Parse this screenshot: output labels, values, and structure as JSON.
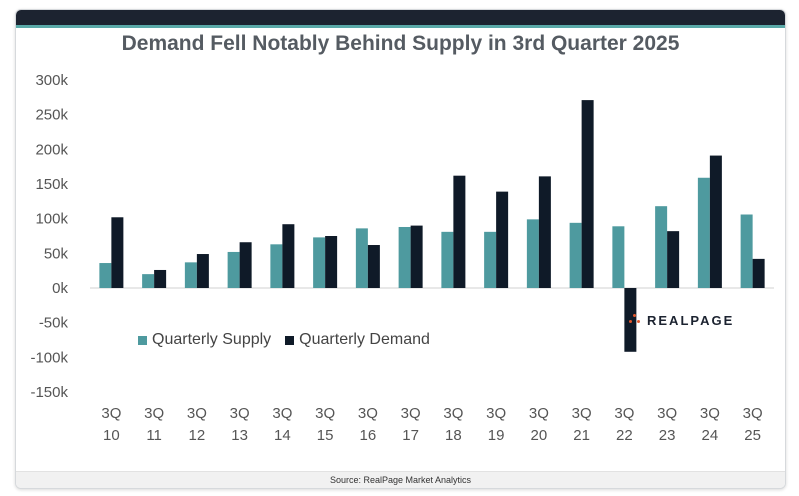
{
  "title": "Demand Fell Notably Behind Supply in 3rd Quarter 2025",
  "footer": "Source: RealPage Market Analytics",
  "logo_text": "REALPAGE",
  "colors": {
    "supply": "#4e9a9f",
    "demand": "#0f1a28",
    "logo_accent": "#e2572c"
  },
  "chart_data": {
    "type": "bar",
    "categories": [
      [
        "3Q",
        "10"
      ],
      [
        "3Q",
        "11"
      ],
      [
        "3Q",
        "12"
      ],
      [
        "3Q",
        "13"
      ],
      [
        "3Q",
        "14"
      ],
      [
        "3Q",
        "15"
      ],
      [
        "3Q",
        "16"
      ],
      [
        "3Q",
        "17"
      ],
      [
        "3Q",
        "18"
      ],
      [
        "3Q",
        "19"
      ],
      [
        "3Q",
        "20"
      ],
      [
        "3Q",
        "21"
      ],
      [
        "3Q",
        "22"
      ],
      [
        "3Q",
        "23"
      ],
      [
        "3Q",
        "24"
      ],
      [
        "3Q",
        "25"
      ]
    ],
    "series": [
      {
        "name": "Quarterly Supply",
        "values": [
          36000,
          20000,
          37000,
          52000,
          63000,
          73000,
          86000,
          88000,
          81000,
          81000,
          99000,
          94000,
          89000,
          118000,
          159000,
          106000
        ]
      },
      {
        "name": "Quarterly Demand",
        "values": [
          102000,
          26000,
          49000,
          66000,
          92000,
          75000,
          62000,
          90000,
          162000,
          139000,
          161000,
          271000,
          -92000,
          82000,
          191000,
          42000
        ]
      }
    ],
    "ylim": [
      -150000,
      300000
    ],
    "yticks": [
      300000,
      250000,
      200000,
      150000,
      100000,
      50000,
      0,
      -50000,
      -100000,
      -150000
    ],
    "ytick_labels": [
      "300k",
      "250k",
      "200k",
      "150k",
      "100k",
      "50k",
      "0k",
      "-50k",
      "-100k",
      "-150k"
    ],
    "legend": "bottom-left"
  }
}
